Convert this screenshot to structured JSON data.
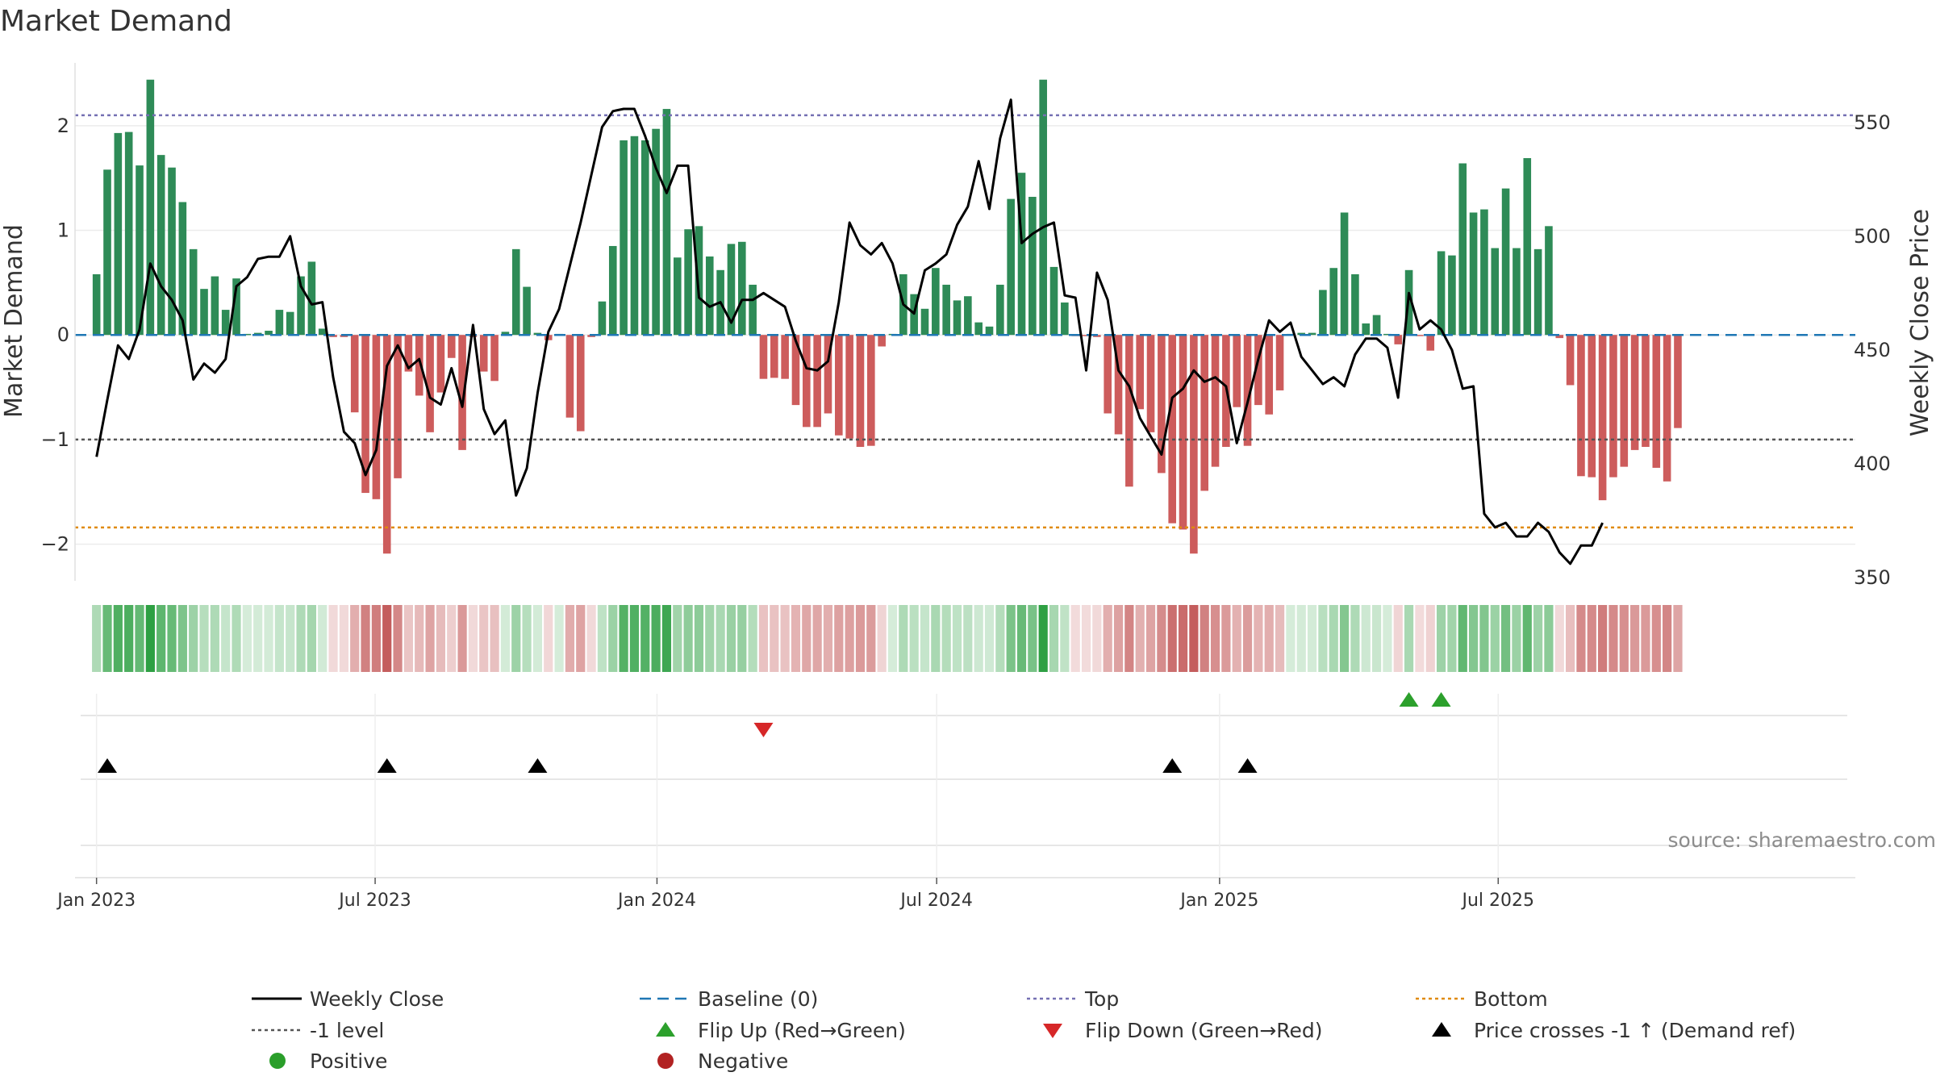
{
  "chart_data": {
    "type": "bar",
    "title": "Market Demand",
    "ylabel": "Market Demand",
    "y2label": "Weekly Close Price",
    "ylim": [
      -2.35,
      2.6
    ],
    "y2lim": [
      348.5,
      576.2
    ],
    "yticks": [
      -2,
      -1,
      0,
      1,
      2
    ],
    "yticklabels": [
      "−2",
      "−1",
      "0",
      "1",
      "2"
    ],
    "y2ticks": [
      350,
      400,
      450,
      500,
      550
    ],
    "x_range_weeks": [
      -2,
      163.5
    ],
    "x_ticks": [
      {
        "label": "Jan 2023",
        "week": 0
      },
      {
        "label": "Jul 2023",
        "week": 25.9
      },
      {
        "label": "Jan 2024",
        "week": 52.1
      },
      {
        "label": "Jul 2024",
        "week": 78.1
      },
      {
        "label": "Jan 2025",
        "week": 104.4
      },
      {
        "label": "Jul 2025",
        "week": 130.3
      }
    ],
    "first_week": "2022-12-30",
    "reference_lines": {
      "top": 2.1,
      "bottom": -1.84,
      "level_minus_1": -1,
      "baseline": 0
    },
    "demand": [
      0.58,
      1.58,
      1.93,
      1.94,
      1.62,
      2.44,
      1.72,
      1.6,
      1.27,
      0.82,
      0.44,
      0.56,
      0.24,
      0.54,
      0.01,
      0.02,
      0.04,
      0.24,
      0.22,
      0.56,
      0.7,
      0.06,
      -0.02,
      -0.02,
      -0.74,
      -1.51,
      -1.57,
      -2.09,
      -1.37,
      -0.35,
      -0.58,
      -0.93,
      -0.55,
      -0.22,
      -1.1,
      -0.02,
      -0.35,
      -0.44,
      0.03,
      0.82,
      0.46,
      0.02,
      -0.05,
      0.01,
      -0.79,
      -0.92,
      -0.02,
      0.32,
      0.85,
      1.86,
      1.9,
      1.86,
      1.97,
      2.16,
      0.74,
      1.01,
      1.04,
      0.75,
      0.62,
      0.87,
      0.89,
      0.48,
      -0.42,
      -0.41,
      -0.42,
      -0.67,
      -0.88,
      -0.88,
      -0.75,
      -0.96,
      -0.99,
      -1.07,
      -1.06,
      -0.11,
      0.01,
      0.58,
      0.39,
      0.25,
      0.64,
      0.48,
      0.33,
      0.37,
      0.12,
      0.08,
      0.48,
      1.3,
      1.55,
      1.32,
      2.44,
      0.65,
      0.31,
      -0.01,
      -0.01,
      -0.02,
      -0.75,
      -0.95,
      -1.45,
      -0.71,
      -0.93,
      -1.32,
      -1.8,
      -1.86,
      -2.09,
      -1.49,
      -1.26,
      -1.07,
      -0.69,
      -1.06,
      -0.67,
      -0.76,
      -0.53,
      0.01,
      0.02,
      0.02,
      0.43,
      0.64,
      1.17,
      0.58,
      0.11,
      0.19,
      0.01,
      -0.09,
      0.62,
      -0.01,
      -0.15,
      0.8,
      0.76,
      1.64,
      1.17,
      1.2,
      0.83,
      1.4,
      0.83,
      1.69,
      0.82,
      1.04,
      -0.03,
      -0.48,
      -1.35,
      -1.36,
      -1.58,
      -1.36,
      -1.26,
      -1.1,
      -1.07,
      -1.27,
      -1.4,
      -0.89
    ],
    "close": [
      403,
      428,
      452,
      446,
      459,
      488,
      478,
      472,
      463,
      437,
      444,
      440,
      446,
      478,
      482,
      490,
      491,
      491,
      500,
      478,
      470,
      471,
      438,
      414,
      409,
      395,
      406,
      443,
      452,
      442,
      446,
      429,
      426,
      442,
      425,
      461,
      424,
      413,
      419,
      386,
      398,
      431,
      458,
      468,
      487,
      506,
      527,
      548,
      555,
      556,
      556,
      544,
      530,
      519,
      531,
      531,
      473,
      469,
      471,
      462,
      472,
      472,
      475,
      472,
      469,
      454,
      442,
      441,
      445,
      471,
      506,
      496,
      492,
      497,
      488,
      470,
      466,
      485,
      488,
      492,
      505,
      513,
      533,
      512,
      543,
      560,
      497,
      501,
      504,
      506,
      474,
      473,
      441,
      484,
      472,
      441,
      434,
      420,
      412,
      404,
      429,
      433,
      441,
      436,
      438,
      434,
      409,
      427,
      446,
      463,
      458,
      462,
      447,
      441,
      435,
      438,
      434,
      448,
      455,
      455,
      451,
      429,
      475,
      459,
      463,
      459,
      450,
      433,
      434,
      378,
      372,
      374,
      368,
      368,
      374,
      370,
      361,
      356,
      364,
      364,
      374
    ]
  },
  "legend": [
    {
      "label": "Weekly Close",
      "kind": "line",
      "color": "#000000"
    },
    {
      "label": "Baseline (0)",
      "kind": "dash-long",
      "color": "#1f77b4"
    },
    {
      "label": "Top",
      "kind": "dotted",
      "color": "#7570b3"
    },
    {
      "label": "Bottom",
      "kind": "dotted",
      "color": "#e08a0b"
    },
    {
      "label": "-1 level",
      "kind": "dotted",
      "color": "#555555"
    },
    {
      "label": "Flip Up (Red→Green)",
      "kind": "triangle-up",
      "color": "#2ca02c"
    },
    {
      "label": "Flip Down (Green→Red)",
      "kind": "triangle-down",
      "color": "#d62728"
    },
    {
      "label": "Price crosses -1 ↑ (Demand ref)",
      "kind": "triangle-up",
      "color": "#000000"
    },
    {
      "label": "Positive",
      "kind": "circle",
      "color": "#2a9e2a"
    },
    {
      "label": "Negative",
      "kind": "circle",
      "color": "#b22222"
    }
  ],
  "colors": {
    "positive": "#2e8b57",
    "negative": "#cd5c5c",
    "price": "#000000"
  },
  "source": "source: sharemaestro.com"
}
